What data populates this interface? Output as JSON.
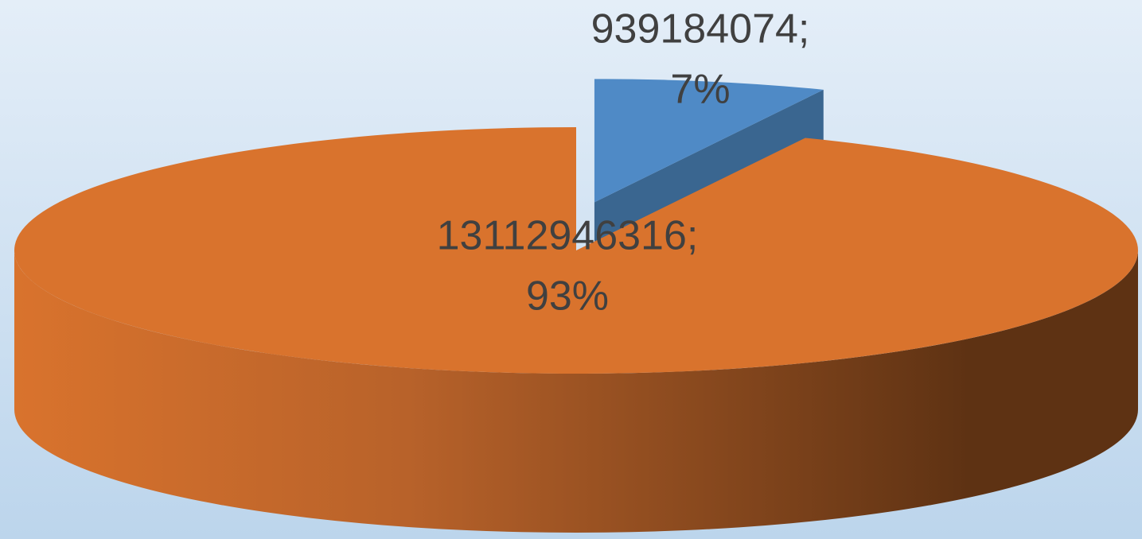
{
  "chart_data": {
    "type": "pie",
    "values": [
      939184074,
      13112946316
    ],
    "value_labels": [
      [
        "939184074;",
        "7%"
      ],
      [
        "13112946316;",
        "93%"
      ]
    ],
    "colors": [
      "#4f8ac6",
      "#d9732d"
    ],
    "exploded": [
      true,
      false
    ],
    "three_d": true
  }
}
